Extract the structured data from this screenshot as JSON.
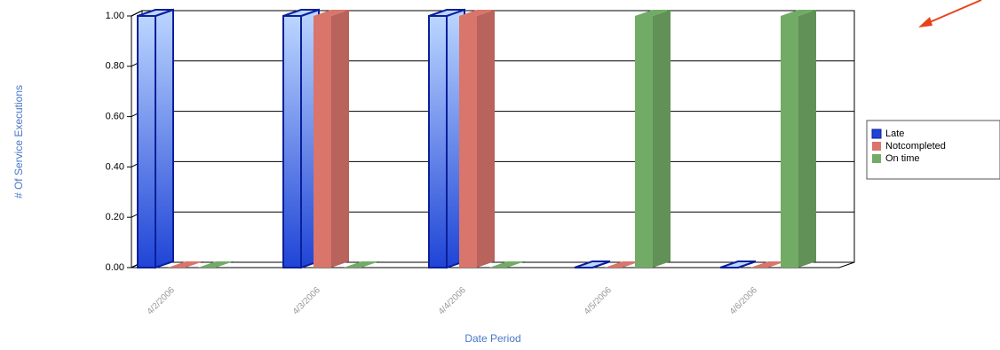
{
  "chart_data": {
    "type": "bar3d",
    "x_label": "Date Period",
    "y_label": "# Of Service Executions",
    "categories": [
      "4/2/2006",
      "4/3/2006",
      "4/4/2006",
      "4/5/2006",
      "4/6/2006"
    ],
    "series": [
      {
        "name": "Late",
        "color": "#1f44d6",
        "values": [
          1,
          1,
          1,
          0,
          0
        ]
      },
      {
        "name": "Notcompleted",
        "color": "#d9756b",
        "values": [
          0,
          1,
          1,
          0,
          0
        ]
      },
      {
        "name": "On time",
        "color": "#72ab66",
        "values": [
          0,
          0,
          0,
          1,
          1
        ]
      }
    ],
    "ylim": [
      0,
      1
    ],
    "yticks": [
      {
        "value": 0,
        "label": "0.00"
      },
      {
        "value": 0.2,
        "label": "0.20"
      },
      {
        "value": 0.4,
        "label": "0.40"
      },
      {
        "value": 0.6,
        "label": "0.60"
      },
      {
        "value": 0.8,
        "label": "0.80"
      },
      {
        "value": 1,
        "label": "1.00"
      }
    ],
    "grid": true,
    "legend": "right"
  }
}
